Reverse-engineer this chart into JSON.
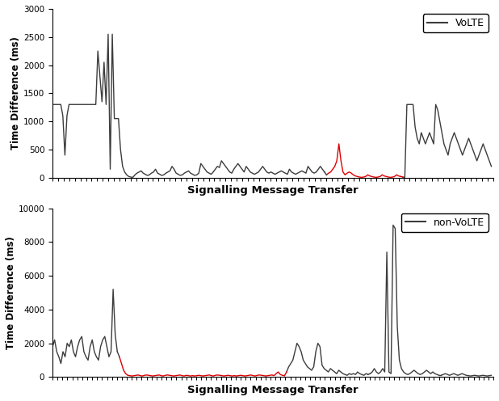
{
  "title1": "VoLTE",
  "title2": "non-VoLTE",
  "xlabel": "Signalling Message Transfer",
  "ylabel": "Time Difference (ms)",
  "ylim1": [
    0,
    3000
  ],
  "ylim2": [
    0,
    10000
  ],
  "yticks1": [
    0,
    500,
    1000,
    1500,
    2000,
    2500,
    3000
  ],
  "yticks2": [
    0,
    2000,
    4000,
    6000,
    8000,
    10000
  ],
  "line_color": "#3c3c3c",
  "red_color": "#dd0000",
  "background": "#ffffff",
  "linewidth": 1.0,
  "volte_dark1": [
    1300,
    1300,
    1300,
    1300,
    1300,
    1100,
    400,
    1100,
    1300,
    1300,
    1300,
    1300,
    1300,
    1300,
    1300,
    1300,
    1300,
    1300,
    1300,
    1300,
    1300,
    1300,
    2250,
    1800,
    1350,
    2050,
    1300,
    2550,
    150,
    2550,
    1050,
    1050,
    1050,
    500,
    200,
    100,
    50,
    20,
    10,
    5,
    50,
    80,
    100,
    120,
    80,
    60,
    40,
    50,
    80,
    100,
    150,
    80,
    60,
    40,
    50,
    80,
    100,
    120,
    200,
    150,
    80,
    60,
    40,
    50,
    80,
    100,
    120,
    80,
    60,
    40,
    50,
    80,
    250,
    200,
    150,
    100,
    80,
    60,
    100,
    150,
    200,
    180,
    300,
    250,
    200,
    150,
    100,
    80,
    150,
    200,
    250,
    200,
    150,
    100,
    200,
    150,
    100,
    80,
    60,
    80,
    100,
    150,
    200,
    150,
    100,
    80,
    100,
    80,
    60,
    80,
    100,
    120,
    100,
    80,
    60,
    150,
    100,
    80,
    60,
    80,
    100,
    120,
    100,
    80,
    200,
    150,
    100,
    80,
    100,
    150,
    200,
    150,
    100
  ],
  "volte_red": [
    50,
    80,
    100,
    150,
    200,
    300,
    600,
    300,
    100,
    50,
    80,
    100,
    80,
    50,
    30,
    20,
    10,
    5,
    10,
    20,
    50,
    30,
    20,
    10,
    5,
    10,
    20,
    50,
    30,
    20,
    10,
    5,
    10,
    20,
    50,
    30,
    20
  ],
  "volte_dark2": [
    10,
    5,
    1300,
    1300,
    1300,
    1300,
    900,
    700,
    600,
    800,
    700,
    600,
    700,
    800,
    700,
    600,
    1300,
    1200,
    1000,
    800,
    600,
    500,
    400,
    600,
    700,
    800,
    700,
    600,
    500,
    400,
    500,
    600,
    700,
    600,
    500,
    400,
    300,
    400,
    500,
    600,
    500,
    400,
    300,
    200
  ],
  "nvolte_dark1": [
    1800,
    2200,
    1500,
    1200,
    800,
    1500,
    1200,
    2000,
    1800,
    2200,
    1500,
    1200,
    1800,
    2200,
    2400,
    1500,
    1200,
    1000,
    1800,
    2200,
    1500,
    1200,
    1000,
    1800,
    2200,
    2400,
    1800,
    1200,
    1500,
    5200,
    2500,
    1500
  ],
  "nvolte_red": [
    1200,
    800,
    400,
    200,
    100,
    80,
    60,
    80,
    100,
    120,
    80,
    60,
    100,
    120,
    100,
    80,
    60,
    80,
    100,
    120,
    80,
    60,
    100,
    120,
    100,
    80,
    60,
    80,
    100,
    120,
    80,
    60,
    100,
    80,
    60,
    80,
    60,
    80,
    100,
    80,
    60,
    80,
    100,
    120,
    80,
    60,
    100,
    120,
    100,
    80,
    60,
    80,
    100,
    80,
    60,
    80,
    60,
    80,
    100,
    80,
    60,
    80,
    100,
    120,
    80,
    60,
    100,
    120,
    100,
    80,
    60,
    80,
    100,
    120,
    80,
    200,
    300,
    150,
    100,
    80
  ],
  "nvolte_dark2": [
    300,
    600,
    800,
    1000,
    1500,
    2000,
    1800,
    1500,
    1000,
    800,
    600,
    500,
    400,
    600,
    1500,
    2000,
    1800,
    700,
    500,
    400,
    300,
    500,
    400,
    300,
    200,
    400,
    300,
    200,
    150,
    100,
    200,
    150,
    200,
    150,
    300,
    200,
    150,
    100,
    200,
    150
  ],
  "nvolte_dark3": [
    200,
    300,
    500,
    300,
    200,
    300,
    500,
    300,
    7400,
    300,
    200,
    9000,
    8800,
    3000,
    1000,
    500,
    300,
    200,
    150,
    200,
    300,
    400,
    300,
    200,
    150,
    200,
    300,
    400,
    300,
    200,
    300,
    200,
    150,
    100
  ],
  "nvolte_dark4": [
    100,
    150,
    200,
    150,
    100,
    150,
    200,
    150,
    100,
    150,
    200,
    150,
    100,
    80,
    60,
    80,
    100,
    80,
    60,
    80,
    100,
    80,
    60,
    80,
    100
  ]
}
